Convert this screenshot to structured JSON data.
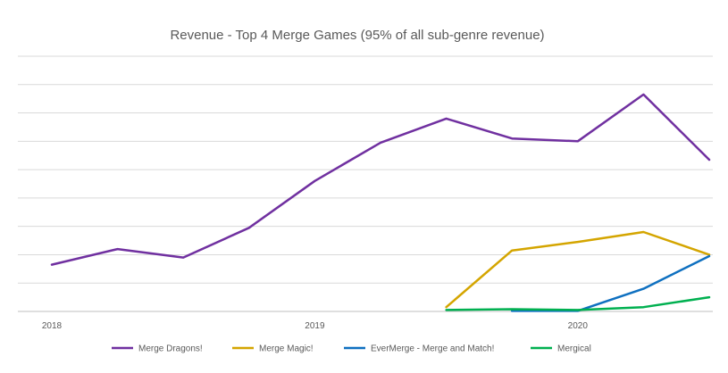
{
  "chart_data": {
    "type": "line",
    "title": "Revenue - Top 4 Merge Games (95% of all sub-genre revenue)",
    "xlabel": "",
    "ylabel": "",
    "x_ticks": [
      "2018",
      "2019",
      "2020"
    ],
    "x_tick_positions": [
      0,
      4,
      8
    ],
    "x_range": [
      0,
      10.4
    ],
    "ylim": [
      0,
      9
    ],
    "grid": true,
    "legend_position": "bottom",
    "series": [
      {
        "name": "Merge Dragons!",
        "color": "#7030a0",
        "x": [
          0,
          1,
          2,
          3,
          4,
          5,
          6,
          7,
          8,
          9,
          10
        ],
        "values": [
          1.65,
          2.2,
          1.9,
          2.95,
          4.6,
          5.95,
          6.8,
          6.1,
          6.0,
          7.65,
          5.35
        ]
      },
      {
        "name": "Merge Magic!",
        "color": "#d4a500",
        "x": [
          6,
          7,
          8,
          9,
          10
        ],
        "values": [
          0.15,
          2.15,
          2.45,
          2.8,
          2.0
        ]
      },
      {
        "name": "EverMerge - Merge and Match!",
        "color": "#0f70c0",
        "x": [
          7,
          8,
          9,
          10
        ],
        "values": [
          0.02,
          0.02,
          0.8,
          1.95
        ]
      },
      {
        "name": "Mergical",
        "color": "#00b050",
        "x": [
          6,
          7,
          8,
          9,
          10
        ],
        "values": [
          0.05,
          0.08,
          0.05,
          0.15,
          0.5
        ]
      }
    ]
  }
}
